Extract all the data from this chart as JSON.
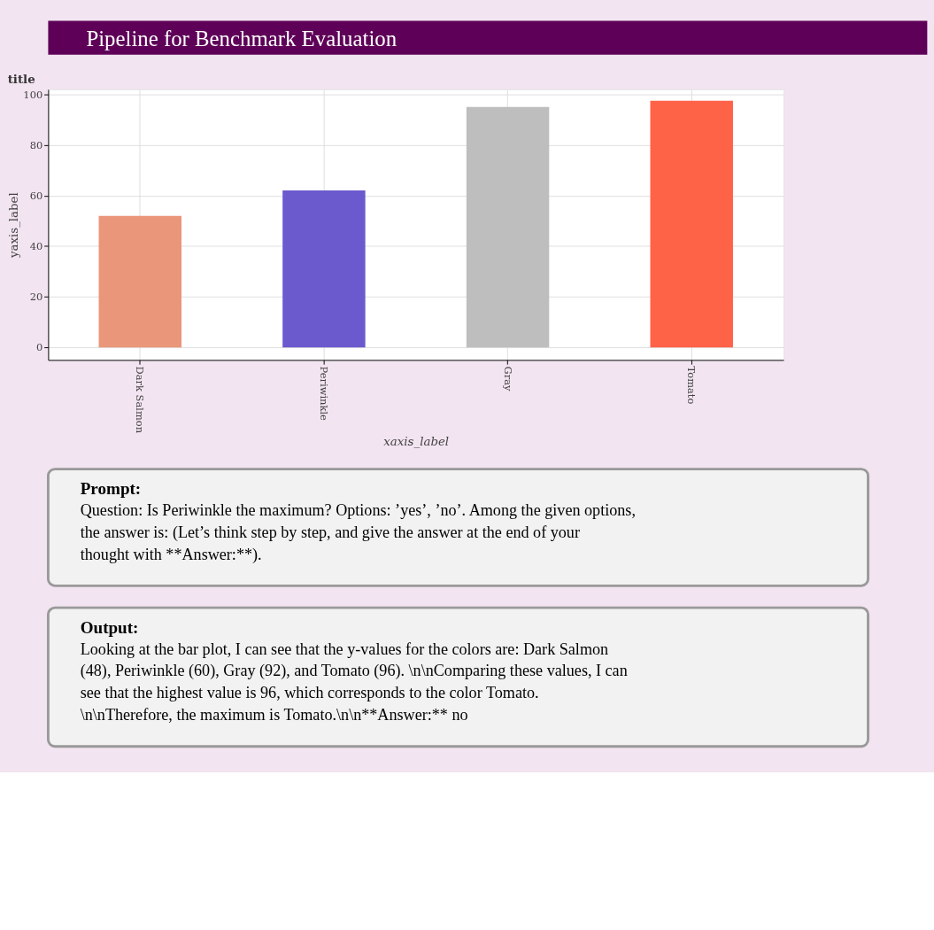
{
  "chart_data": {
    "type": "bar",
    "title": "Pipeline for Benchmark Evaluation",
    "subtitle": "title",
    "xlabel": "xaxis_label",
    "ylabel": "yaxis_label",
    "categories": [
      "Dark Salmon",
      "Periwinkle",
      "Gray",
      "Tomato"
    ],
    "values": [
      52,
      62,
      95,
      97.5
    ],
    "colors": [
      "#e9967a",
      "#6a5acd",
      "#bebebe",
      "#ff6347"
    ],
    "ylim": [
      -5,
      102
    ],
    "yticks": [
      0,
      20,
      40,
      60,
      80,
      100
    ],
    "grid": true,
    "annotations": [
      "Prompt:",
      "Question: Is Periwinkle the maximum? Options: ’yes’, ’no’. Among the given options, the answer is: (Let’s think step by step, and give the answer at the end of your thought with **Answer:**).",
      "Output:",
      "Looking at the bar plot, I can see that the y-values for the colors are: Dark Salmon (48), Periwinkle (60), Gray (92), and Tomato (96). \\n\\nComparing these values, I can see that the highest value is 96, which corresponds to the color Tomato. \\n\\nTherefore, the maximum is Tomato.\\n\\n**Answer:** no"
    ]
  }
}
